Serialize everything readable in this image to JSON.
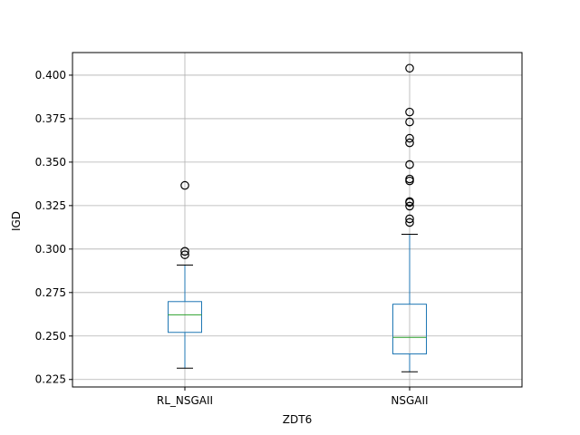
{
  "chart_data": {
    "type": "box",
    "title": "",
    "xlabel": "ZDT6",
    "ylabel": "IGD",
    "ylim": [
      0.2207,
      0.413
    ],
    "yticks": [
      0.225,
      0.25,
      0.275,
      0.3,
      0.325,
      0.35,
      0.375,
      0.4
    ],
    "grid": true,
    "categories": [
      "RL_NSGAII",
      "NSGAII"
    ],
    "colors": {
      "box": "#1f77b4",
      "median": "#2ca02c",
      "grid": "#b0b0b0",
      "outlier": "#000000"
    },
    "boxes": [
      {
        "name": "RL_NSGAII",
        "whisker_low": 0.2315,
        "q1": 0.2521,
        "median": 0.2622,
        "q3": 0.2698,
        "whisker_high": 0.2908,
        "outliers": [
          0.2967,
          0.2987,
          0.3366
        ]
      },
      {
        "name": "NSGAII",
        "whisker_low": 0.2294,
        "q1": 0.2397,
        "median": 0.2492,
        "q3": 0.2683,
        "whisker_high": 0.3085,
        "outliers": [
          0.3153,
          0.3174,
          0.3247,
          0.3268,
          0.3273,
          0.3392,
          0.3403,
          0.3486,
          0.3611,
          0.3637,
          0.3731,
          0.3788,
          0.404
        ]
      }
    ]
  }
}
